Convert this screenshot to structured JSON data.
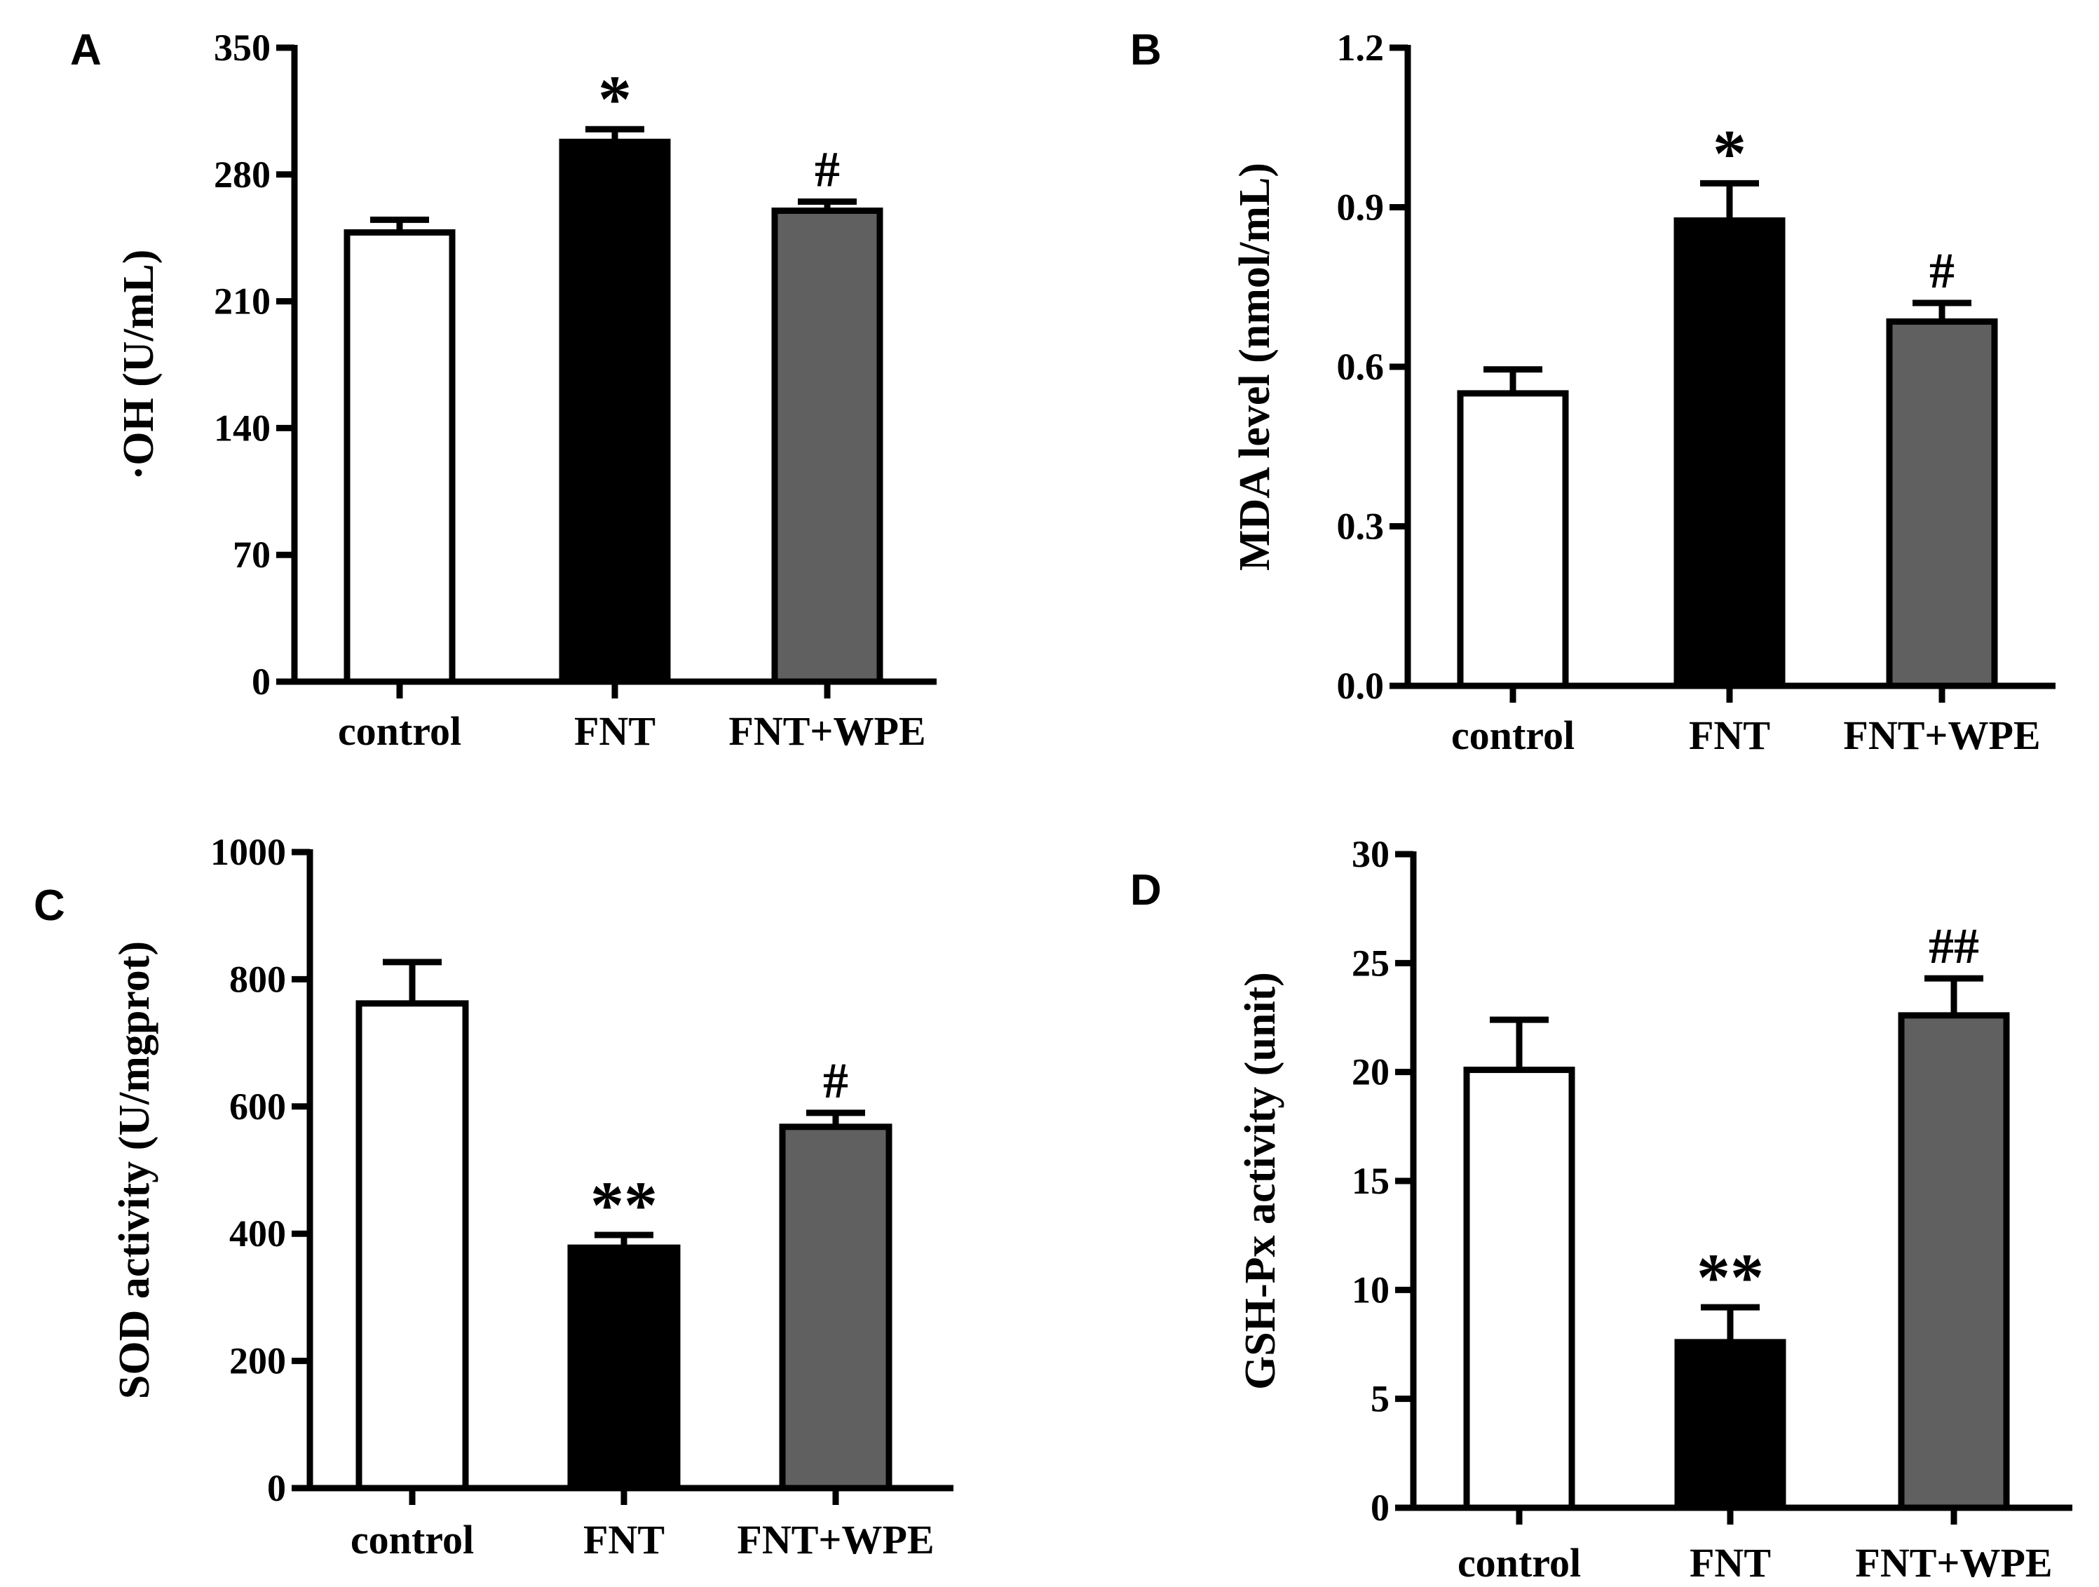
{
  "chart_data": [
    {
      "type": "bar",
      "panel": "A",
      "ylabel": "·OH (U/mL)",
      "ylim": [
        0,
        350
      ],
      "yticks": [
        "0",
        "70",
        "140",
        "210",
        "280",
        "350"
      ],
      "categories": [
        "control",
        "FNT",
        "FNT+WPE"
      ],
      "values": [
        248,
        298,
        260
      ],
      "errors": [
        7,
        7,
        5
      ],
      "annotations": [
        "",
        "*",
        "#"
      ],
      "fills": [
        "#ffffff",
        "#000000",
        "#606060"
      ]
    },
    {
      "type": "bar",
      "panel": "B",
      "ylabel": "MDA level (nmol/mL)",
      "ylim": [
        0,
        1.2
      ],
      "yticks": [
        "0.0",
        "0.3",
        "0.6",
        "0.9",
        "1.2"
      ],
      "categories": [
        "control",
        "FNT",
        "FNT+WPE"
      ],
      "values": [
        0.55,
        0.875,
        0.685
      ],
      "errors": [
        0.045,
        0.07,
        0.035
      ],
      "annotations": [
        "",
        "*",
        "#"
      ],
      "fills": [
        "#ffffff",
        "#000000",
        "#606060"
      ]
    },
    {
      "type": "bar",
      "panel": "C",
      "ylabel": "SOD activity (U/mgprot)",
      "ylim": [
        0,
        1000
      ],
      "yticks": [
        "0",
        "200",
        "400",
        "600",
        "800",
        "1000"
      ],
      "categories": [
        "control",
        "FNT",
        "FNT+WPE"
      ],
      "values": [
        762,
        378,
        568
      ],
      "errors": [
        65,
        20,
        22
      ],
      "annotations": [
        "",
        "**",
        "#"
      ],
      "fills": [
        "#ffffff",
        "#000000",
        "#606060"
      ]
    },
    {
      "type": "bar",
      "panel": "D",
      "ylabel": "GSH-Px activity (unit)",
      "ylim": [
        0,
        30
      ],
      "yticks": [
        "0",
        "5",
        "10",
        "15",
        "20",
        "25",
        "30"
      ],
      "categories": [
        "control",
        "FNT",
        "FNT+WPE"
      ],
      "values": [
        20.1,
        7.6,
        22.6
      ],
      "errors": [
        2.3,
        1.6,
        1.7
      ],
      "annotations": [
        "",
        "**",
        "##"
      ],
      "fills": [
        "#ffffff",
        "#000000",
        "#606060"
      ]
    }
  ]
}
